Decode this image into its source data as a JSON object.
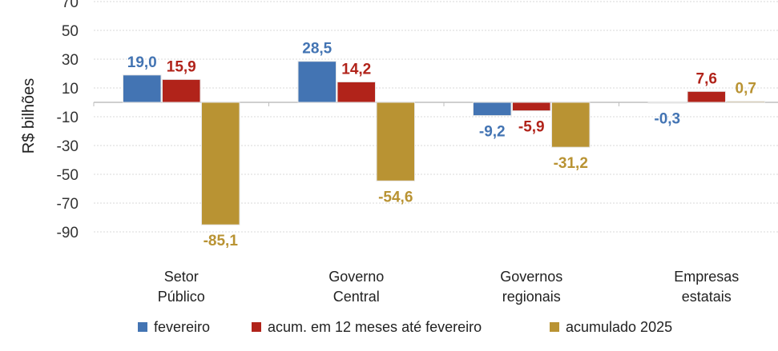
{
  "chart_data": {
    "type": "bar",
    "title": "",
    "xlabel": "",
    "ylabel": "R$ bilhões",
    "ylim": [
      -90,
      70
    ],
    "yticks": [
      70,
      50,
      30,
      10,
      -10,
      -30,
      -50,
      -70,
      -90
    ],
    "grid": true,
    "legend_position": "bottom",
    "categories": [
      [
        "Setor",
        "Público"
      ],
      [
        "Governo",
        "Central"
      ],
      [
        "Governos",
        "regionais"
      ],
      [
        "Empresas",
        "estatais"
      ]
    ],
    "series": [
      {
        "name": "fevereiro",
        "color": "#4374b3",
        "values": [
          19.0,
          28.5,
          -9.2,
          -0.3
        ],
        "labels": [
          "19,0",
          "28,5",
          "-9,2",
          "-0,3"
        ]
      },
      {
        "name": "acum. em 12 meses até fevereiro",
        "color": "#b1231a",
        "values": [
          15.9,
          14.2,
          -5.9,
          7.6
        ],
        "labels": [
          "15,9",
          "14,2",
          "-5,9",
          "7,6"
        ]
      },
      {
        "name": "acumulado 2025",
        "color": "#b99333",
        "values": [
          -85.1,
          -54.6,
          -31.2,
          0.7
        ],
        "labels": [
          "-85,1",
          "-54,6",
          "-31,2",
          "0,7"
        ]
      }
    ]
  }
}
